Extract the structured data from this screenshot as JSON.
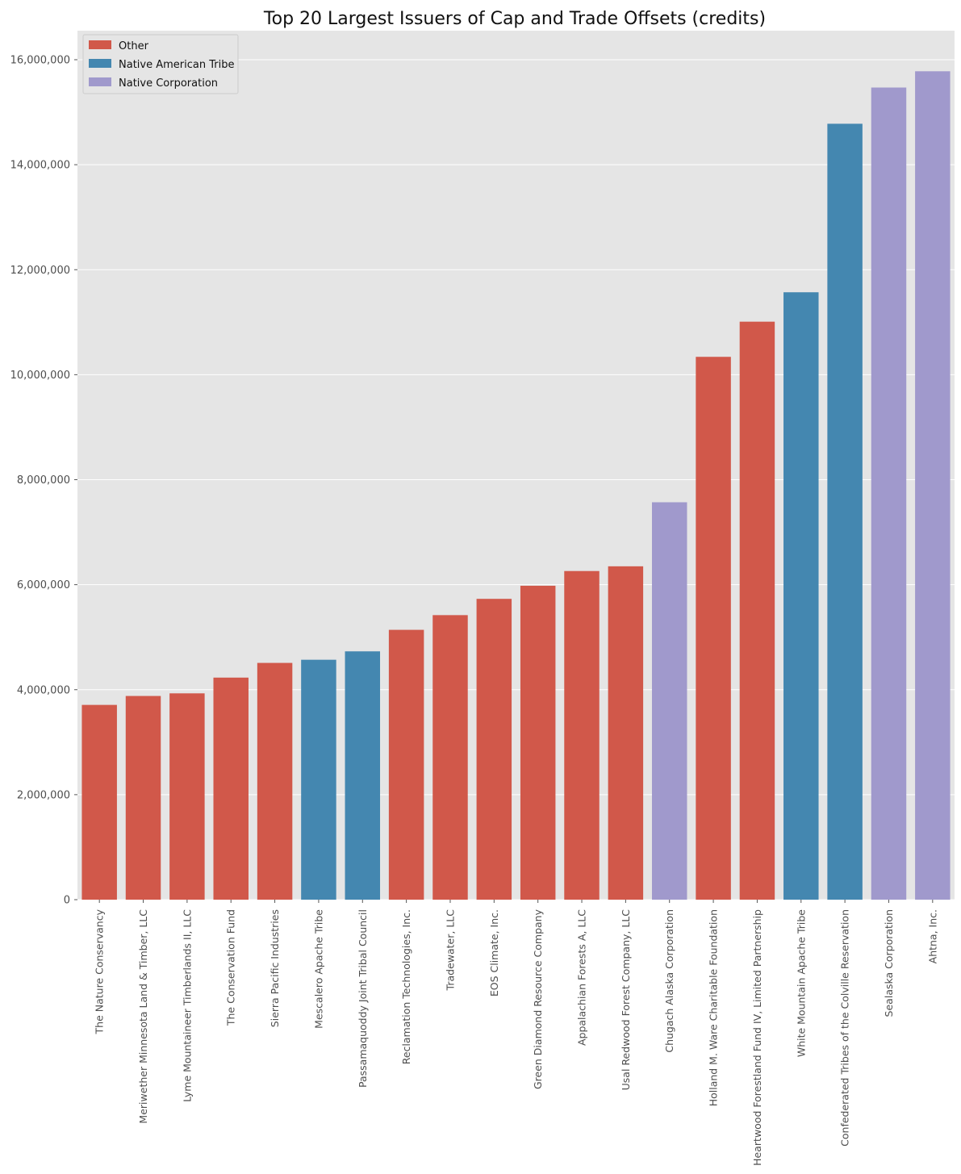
{
  "chart_data": {
    "type": "bar",
    "title": "Top 20 Largest Issuers of Cap and Trade Offsets (credits)",
    "xlabel": "",
    "ylabel": "",
    "ylim": [
      0,
      16500000
    ],
    "yticks": [
      0,
      2000000,
      4000000,
      6000000,
      8000000,
      10000000,
      12000000,
      14000000,
      16000000
    ],
    "ytick_labels": [
      "0",
      "2,000,000",
      "4,000,000",
      "6,000,000",
      "8,000,000",
      "10,000,000",
      "12,000,000",
      "14,000,000",
      "16,000,000"
    ],
    "grid": true,
    "legend_position": "top-left",
    "legend": [
      {
        "label": "Other",
        "color": "#d1584a"
      },
      {
        "label": "Native American Tribe",
        "color": "#4487b0"
      },
      {
        "label": "Native Corporation",
        "color": "#a099cc"
      }
    ],
    "categories": [
      "The Nature Conservancy",
      "Meriwether Minnesota Land & Timber, LLC",
      "Lyme Mountaineer Timberlands II, LLC",
      "The Conservation Fund",
      "Sierra Pacific Industries",
      "Mescalero Apache Tribe",
      "Passamaquoddy Joint Tribal Council",
      "Reclamation Technologies, Inc.",
      "Tradewater, LLC",
      "EOS Climate, Inc.",
      "Green Diamond Resource Company",
      "Appalachian Forests A, LLC",
      "Usal Redwood Forest Company, LLC",
      "Chugach Alaska Corporation",
      "Holland M. Ware Charitable Foundation",
      "Heartwood Forestland Fund IV, Limited Partnership",
      "White Mountain Apache Tribe",
      "Confederated Tribes of the Colville Reservation",
      "Sealaska Corporation",
      "Ahtna, Inc."
    ],
    "values": [
      3710000,
      3880000,
      3930000,
      4230000,
      4510000,
      4570000,
      4730000,
      5140000,
      5420000,
      5730000,
      5980000,
      6260000,
      6350000,
      7570000,
      10340000,
      11010000,
      11570000,
      14780000,
      15470000,
      15780000
    ],
    "groups": [
      "Other",
      "Other",
      "Other",
      "Other",
      "Other",
      "Native American Tribe",
      "Native American Tribe",
      "Other",
      "Other",
      "Other",
      "Other",
      "Other",
      "Other",
      "Native Corporation",
      "Other",
      "Other",
      "Native American Tribe",
      "Native American Tribe",
      "Native Corporation",
      "Native Corporation"
    ]
  }
}
